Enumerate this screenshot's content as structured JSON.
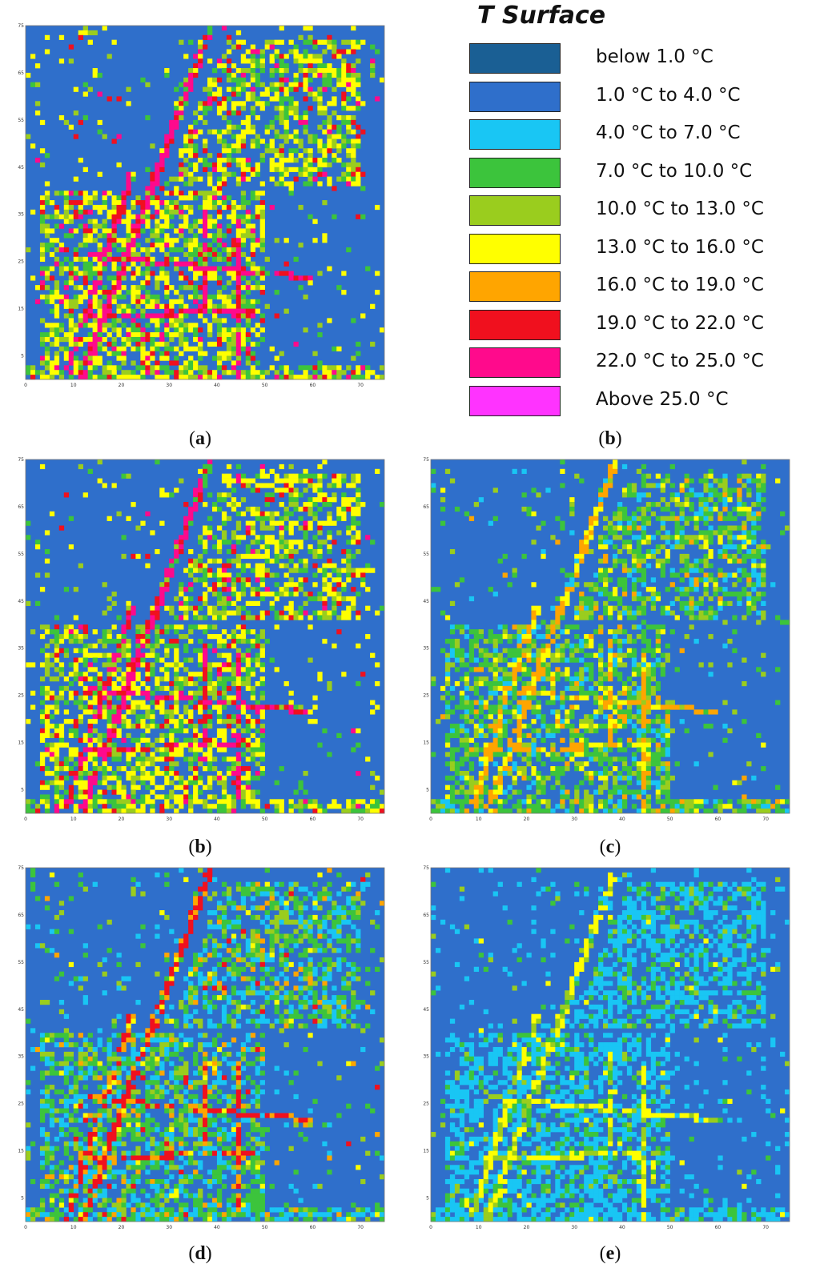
{
  "legend": {
    "title": "T Surface",
    "items": [
      {
        "label": "below 1.0 °C",
        "color": "#1a5f94"
      },
      {
        "label": "1.0 °C to 4.0 °C",
        "color": "#2f6fcb"
      },
      {
        "label": "4.0 °C to 7.0 °C",
        "color": "#19c6f4"
      },
      {
        "label": "7.0 °C to 10.0 °C",
        "color": "#3cc43c"
      },
      {
        "label": "10.0 °C to 13.0 °C",
        "color": "#9acd1e"
      },
      {
        "label": "13.0 °C to 16.0 °C",
        "color": "#ffff00"
      },
      {
        "label": "16.0 °C to 19.0 °C",
        "color": "#ffa500"
      },
      {
        "label": "19.0 °C to 22.0 °C",
        "color": "#f0101e"
      },
      {
        "label": "22.0 °C to 25.0 °C",
        "color": "#ff0a8c"
      },
      {
        "label": "Above 25.0 °C",
        "color": "#ff33ff"
      }
    ]
  },
  "chart_data": [
    {
      "type": "heatmap",
      "panel": "a",
      "caption": "a",
      "xlim": [
        0,
        75
      ],
      "ylim": [
        0,
        75
      ],
      "x_ticks": [
        "0",
        "10",
        "20",
        "30",
        "40",
        "50",
        "60",
        "70"
      ],
      "y_ticks": [
        "5",
        "15",
        "25",
        "35",
        "45",
        "55",
        "65",
        "75"
      ],
      "class_counts_share": {
        "1.0 °C to 4.0 °C": 0.45,
        "7.0 °C to 10.0 °C": 0.12,
        "10.0 °C to 13.0 °C": 0.12,
        "13.0 °C to 16.0 °C": 0.22,
        "19.0 °C to 22.0 °C": 0.05,
        "22.0 °C to 25.0 °C": 0.03
      }
    },
    {
      "type": "heatmap",
      "panel": "b",
      "caption": "b",
      "xlim": [
        0,
        75
      ],
      "ylim": [
        0,
        75
      ],
      "x_ticks": [
        "0",
        "10",
        "20",
        "30",
        "40",
        "50",
        "60",
        "70"
      ],
      "y_ticks": [
        "5",
        "15",
        "25",
        "35",
        "45",
        "55",
        "65",
        "75"
      ],
      "class_counts_share": {
        "1.0 °C to 4.0 °C": 0.46,
        "7.0 °C to 10.0 °C": 0.14,
        "10.0 °C to 13.0 °C": 0.12,
        "13.0 °C to 16.0 °C": 0.22,
        "19.0 °C to 22.0 °C": 0.04,
        "22.0 °C to 25.0 °C": 0.02
      }
    },
    {
      "type": "heatmap",
      "panel": "c",
      "caption": "c",
      "xlim": [
        0,
        75
      ],
      "ylim": [
        0,
        75
      ],
      "x_ticks": [
        "0",
        "10",
        "20",
        "30",
        "40",
        "50",
        "60",
        "70"
      ],
      "y_ticks": [
        "5",
        "15",
        "25",
        "35",
        "45",
        "55",
        "65",
        "75"
      ],
      "class_counts_share": {
        "1.0 °C to 4.0 °C": 0.5,
        "4.0 °C to 7.0 °C": 0.08,
        "7.0 °C to 10.0 °C": 0.22,
        "10.0 °C to 13.0 °C": 0.12,
        "13.0 °C to 16.0 °C": 0.05,
        "16.0 °C to 19.0 °C": 0.03
      }
    },
    {
      "type": "heatmap",
      "panel": "d",
      "caption": "d",
      "xlim": [
        0,
        75
      ],
      "ylim": [
        0,
        75
      ],
      "x_ticks": [
        "0",
        "10",
        "20",
        "30",
        "40",
        "50",
        "60",
        "70"
      ],
      "y_ticks": [
        "5",
        "15",
        "25",
        "35",
        "45",
        "55",
        "65",
        "75"
      ],
      "class_counts_share": {
        "1.0 °C to 4.0 °C": 0.5,
        "4.0 °C to 7.0 °C": 0.16,
        "7.0 °C to 10.0 °C": 0.18,
        "10.0 °C to 13.0 °C": 0.1,
        "13.0 °C to 16.0 °C": 0.02,
        "16.0 °C to 19.0 °C": 0.03,
        "19.0 °C to 22.0 °C": 0.01
      }
    },
    {
      "type": "heatmap",
      "panel": "e",
      "caption": "e",
      "xlim": [
        0,
        75
      ],
      "ylim": [
        0,
        75
      ],
      "x_ticks": [
        "0",
        "10",
        "20",
        "30",
        "40",
        "50",
        "60",
        "70"
      ],
      "y_ticks": [
        "5",
        "15",
        "25",
        "35",
        "45",
        "55",
        "65",
        "75"
      ],
      "class_counts_share": {
        "1.0 °C to 4.0 °C": 0.58,
        "4.0 °C to 7.0 °C": 0.3,
        "7.0 °C to 10.0 °C": 0.08,
        "10.0 °C to 13.0 °C": 0.03,
        "13.0 °C to 16.0 °C": 0.01
      }
    }
  ]
}
